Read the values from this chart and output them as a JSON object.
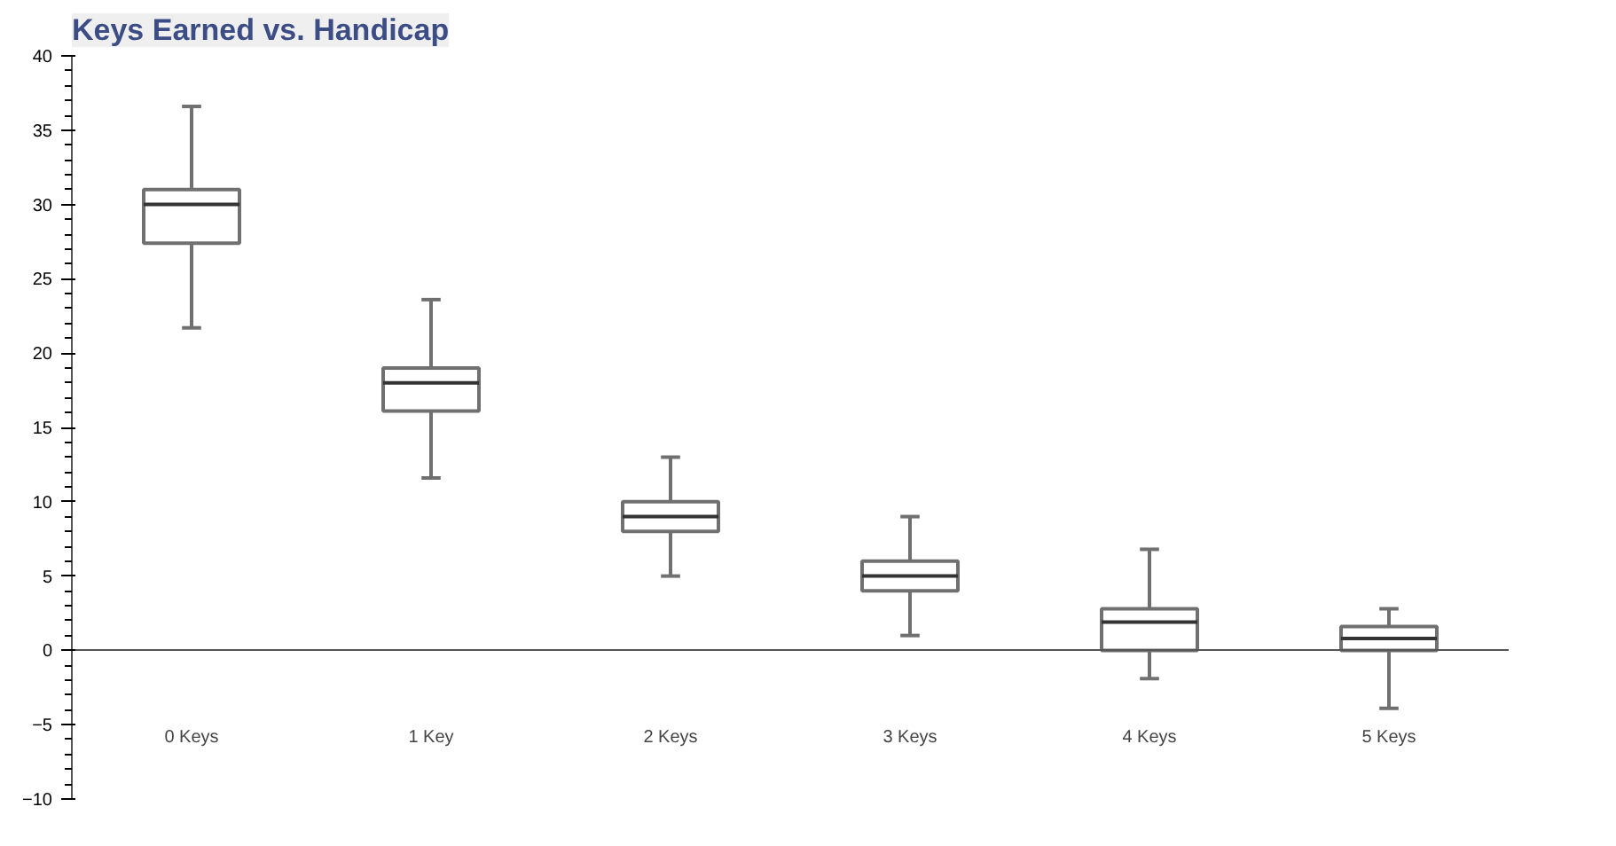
{
  "chart_data": {
    "type": "box",
    "title": "Keys Earned vs. Handicap",
    "categories": [
      "0 Keys",
      "1 Key",
      "2 Keys",
      "3 Keys",
      "4 Keys",
      "5 Keys"
    ],
    "boxes": [
      {
        "low": 21.7,
        "q1": 27.4,
        "median": 30,
        "q3": 31,
        "high": 36.6
      },
      {
        "low": 11.6,
        "q1": 16.1,
        "median": 18,
        "q3": 19,
        "high": 23.6
      },
      {
        "low": 5,
        "q1": 8,
        "median": 9,
        "q3": 10,
        "high": 13
      },
      {
        "low": 1,
        "q1": 4,
        "median": 5,
        "q3": 6,
        "high": 9
      },
      {
        "low": -1.9,
        "q1": 0,
        "median": 1.9,
        "q3": 2.8,
        "high": 6.8
      },
      {
        "low": -3.9,
        "q1": 0,
        "median": 0.8,
        "q3": 1.6,
        "high": 2.8
      }
    ],
    "color": "#707070",
    "ylim": [
      -10,
      40
    ],
    "yticks": [
      -10,
      -5,
      0,
      5,
      10,
      15,
      20,
      25,
      30,
      35,
      40
    ]
  }
}
